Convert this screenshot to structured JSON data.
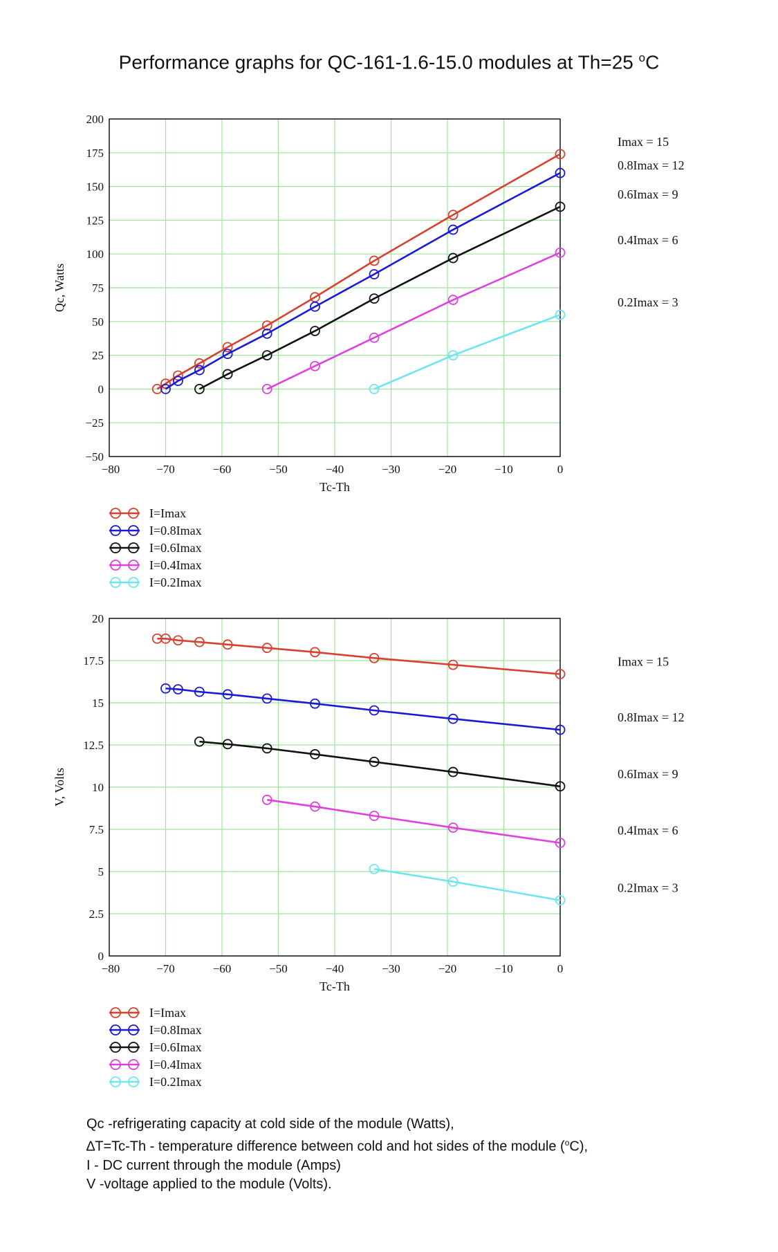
{
  "title": "Performance graphs for QC-161-1.6-15.0 modules at Th=25",
  "title_unit_sup": "o",
  "title_unit": "C",
  "colors": {
    "imax": "#d9402e",
    "imax08": "#1a1ad6",
    "imax06": "#111111",
    "imax04": "#e040e0",
    "imax02": "#6fe6ef",
    "grid": "#9ee49e"
  },
  "chart_data": [
    {
      "type": "line",
      "ylabel": "Qc, Watts",
      "xlabel": "Tc-Th",
      "xlim": [
        -80,
        0
      ],
      "ylim": [
        -50,
        200
      ],
      "xticks": [
        -80,
        -70,
        -60,
        -50,
        -40,
        -30,
        -20,
        -10,
        0
      ],
      "xtick_labels": [
        "−80",
        "−70",
        "−60",
        "−50",
        "−40",
        "−30",
        "−20",
        "−10",
        "0"
      ],
      "yticks": [
        -50,
        -25,
        0,
        25,
        50,
        75,
        100,
        125,
        150,
        175,
        200
      ],
      "ytick_labels": [
        "−50",
        "−25",
        "0",
        "25",
        "50",
        "75",
        "100",
        "125",
        "150",
        "175",
        "200"
      ],
      "grid": true,
      "legend_position": "below",
      "series": [
        {
          "name": "I=Imax",
          "color_key": "imax",
          "end_label": "Imax  =  15",
          "x": [
            -71.5,
            -70.0,
            -67.8,
            -64.0,
            -59.0,
            -52.0,
            -43.5,
            -33.0,
            -19.0,
            0
          ],
          "y": [
            0,
            4,
            10,
            19,
            31,
            47,
            68,
            95,
            129,
            174
          ]
        },
        {
          "name": "I=0.8Imax",
          "color_key": "imax08",
          "end_label": "0.8Imax  =  12",
          "x": [
            -70.0,
            -67.8,
            -64.0,
            -59.0,
            -52.0,
            -43.5,
            -33.0,
            -19.0,
            0
          ],
          "y": [
            0,
            6,
            14,
            26,
            41,
            61,
            85,
            118,
            160
          ]
        },
        {
          "name": "I=0.6Imax",
          "color_key": "imax06",
          "end_label": "0.6Imax  =  9",
          "x": [
            -64.0,
            -59.0,
            -52.0,
            -43.5,
            -33.0,
            -19.0,
            0
          ],
          "y": [
            0,
            11,
            25,
            43,
            67,
            97,
            135
          ]
        },
        {
          "name": "I=0.4Imax",
          "color_key": "imax04",
          "end_label": "0.4Imax  =  6",
          "x": [
            -52.0,
            -43.5,
            -33.0,
            -19.0,
            0
          ],
          "y": [
            0,
            17,
            38,
            66,
            101
          ]
        },
        {
          "name": "I=0.2Imax",
          "color_key": "imax02",
          "end_label": "0.2Imax  =  3",
          "x": [
            -33.0,
            -19.0,
            0
          ],
          "y": [
            0,
            25,
            55
          ]
        }
      ]
    },
    {
      "type": "line",
      "ylabel": "V, Volts",
      "xlabel": "Tc-Th",
      "xlim": [
        -80,
        0
      ],
      "ylim": [
        0,
        20
      ],
      "xticks": [
        -80,
        -70,
        -60,
        -50,
        -40,
        -30,
        -20,
        -10,
        0
      ],
      "xtick_labels": [
        "−80",
        "−70",
        "−60",
        "−50",
        "−40",
        "−30",
        "−20",
        "−10",
        "0"
      ],
      "yticks": [
        0,
        2.5,
        5,
        7.5,
        10,
        12.5,
        15,
        17.5,
        20
      ],
      "ytick_labels": [
        "0",
        "2.5",
        "5",
        "7.5",
        "10",
        "12.5",
        "15",
        "17.5",
        "20"
      ],
      "grid": true,
      "legend_position": "below",
      "series": [
        {
          "name": "I=Imax",
          "color_key": "imax",
          "end_label": "Imax  =  15",
          "x": [
            -71.5,
            -70.0,
            -67.8,
            -64.0,
            -59.0,
            -52.0,
            -43.5,
            -33.0,
            -19.0,
            0
          ],
          "y": [
            18.8,
            18.8,
            18.7,
            18.6,
            18.45,
            18.25,
            18.0,
            17.65,
            17.25,
            16.7
          ]
        },
        {
          "name": "I=0.8Imax",
          "color_key": "imax08",
          "end_label": "0.8Imax  =  12",
          "x": [
            -70.0,
            -67.8,
            -64.0,
            -59.0,
            -52.0,
            -43.5,
            -33.0,
            -19.0,
            0
          ],
          "y": [
            15.85,
            15.8,
            15.65,
            15.5,
            15.25,
            14.95,
            14.55,
            14.05,
            13.4
          ]
        },
        {
          "name": "I=0.6Imax",
          "color_key": "imax06",
          "end_label": "0.6Imax  =  9",
          "x": [
            -64.0,
            -59.0,
            -52.0,
            -43.5,
            -33.0,
            -19.0,
            0
          ],
          "y": [
            12.7,
            12.55,
            12.3,
            11.95,
            11.5,
            10.9,
            10.05
          ]
        },
        {
          "name": "I=0.4Imax",
          "color_key": "imax04",
          "end_label": "0.4Imax  =  6",
          "x": [
            -52.0,
            -43.5,
            -33.0,
            -19.0,
            0
          ],
          "y": [
            9.25,
            8.85,
            8.3,
            7.6,
            6.7
          ]
        },
        {
          "name": "I=0.2Imax",
          "color_key": "imax02",
          "end_label": "0.2Imax  =  3",
          "x": [
            -33.0,
            -19.0,
            0
          ],
          "y": [
            5.15,
            4.4,
            3.3
          ]
        }
      ]
    }
  ],
  "footer": {
    "line1": "Qc -refrigerating capacity at cold side of the module (Watts),",
    "line2_delta": "∆",
    "line2_text": "T=Tc-Th - temperature difference between cold and hot sides of the module (",
    "line2_sup": "o",
    "line2_end": "C),",
    "line3": "I - DC current through the module (Amps)",
    "line4": "V -voltage applied to the module (Volts)."
  }
}
